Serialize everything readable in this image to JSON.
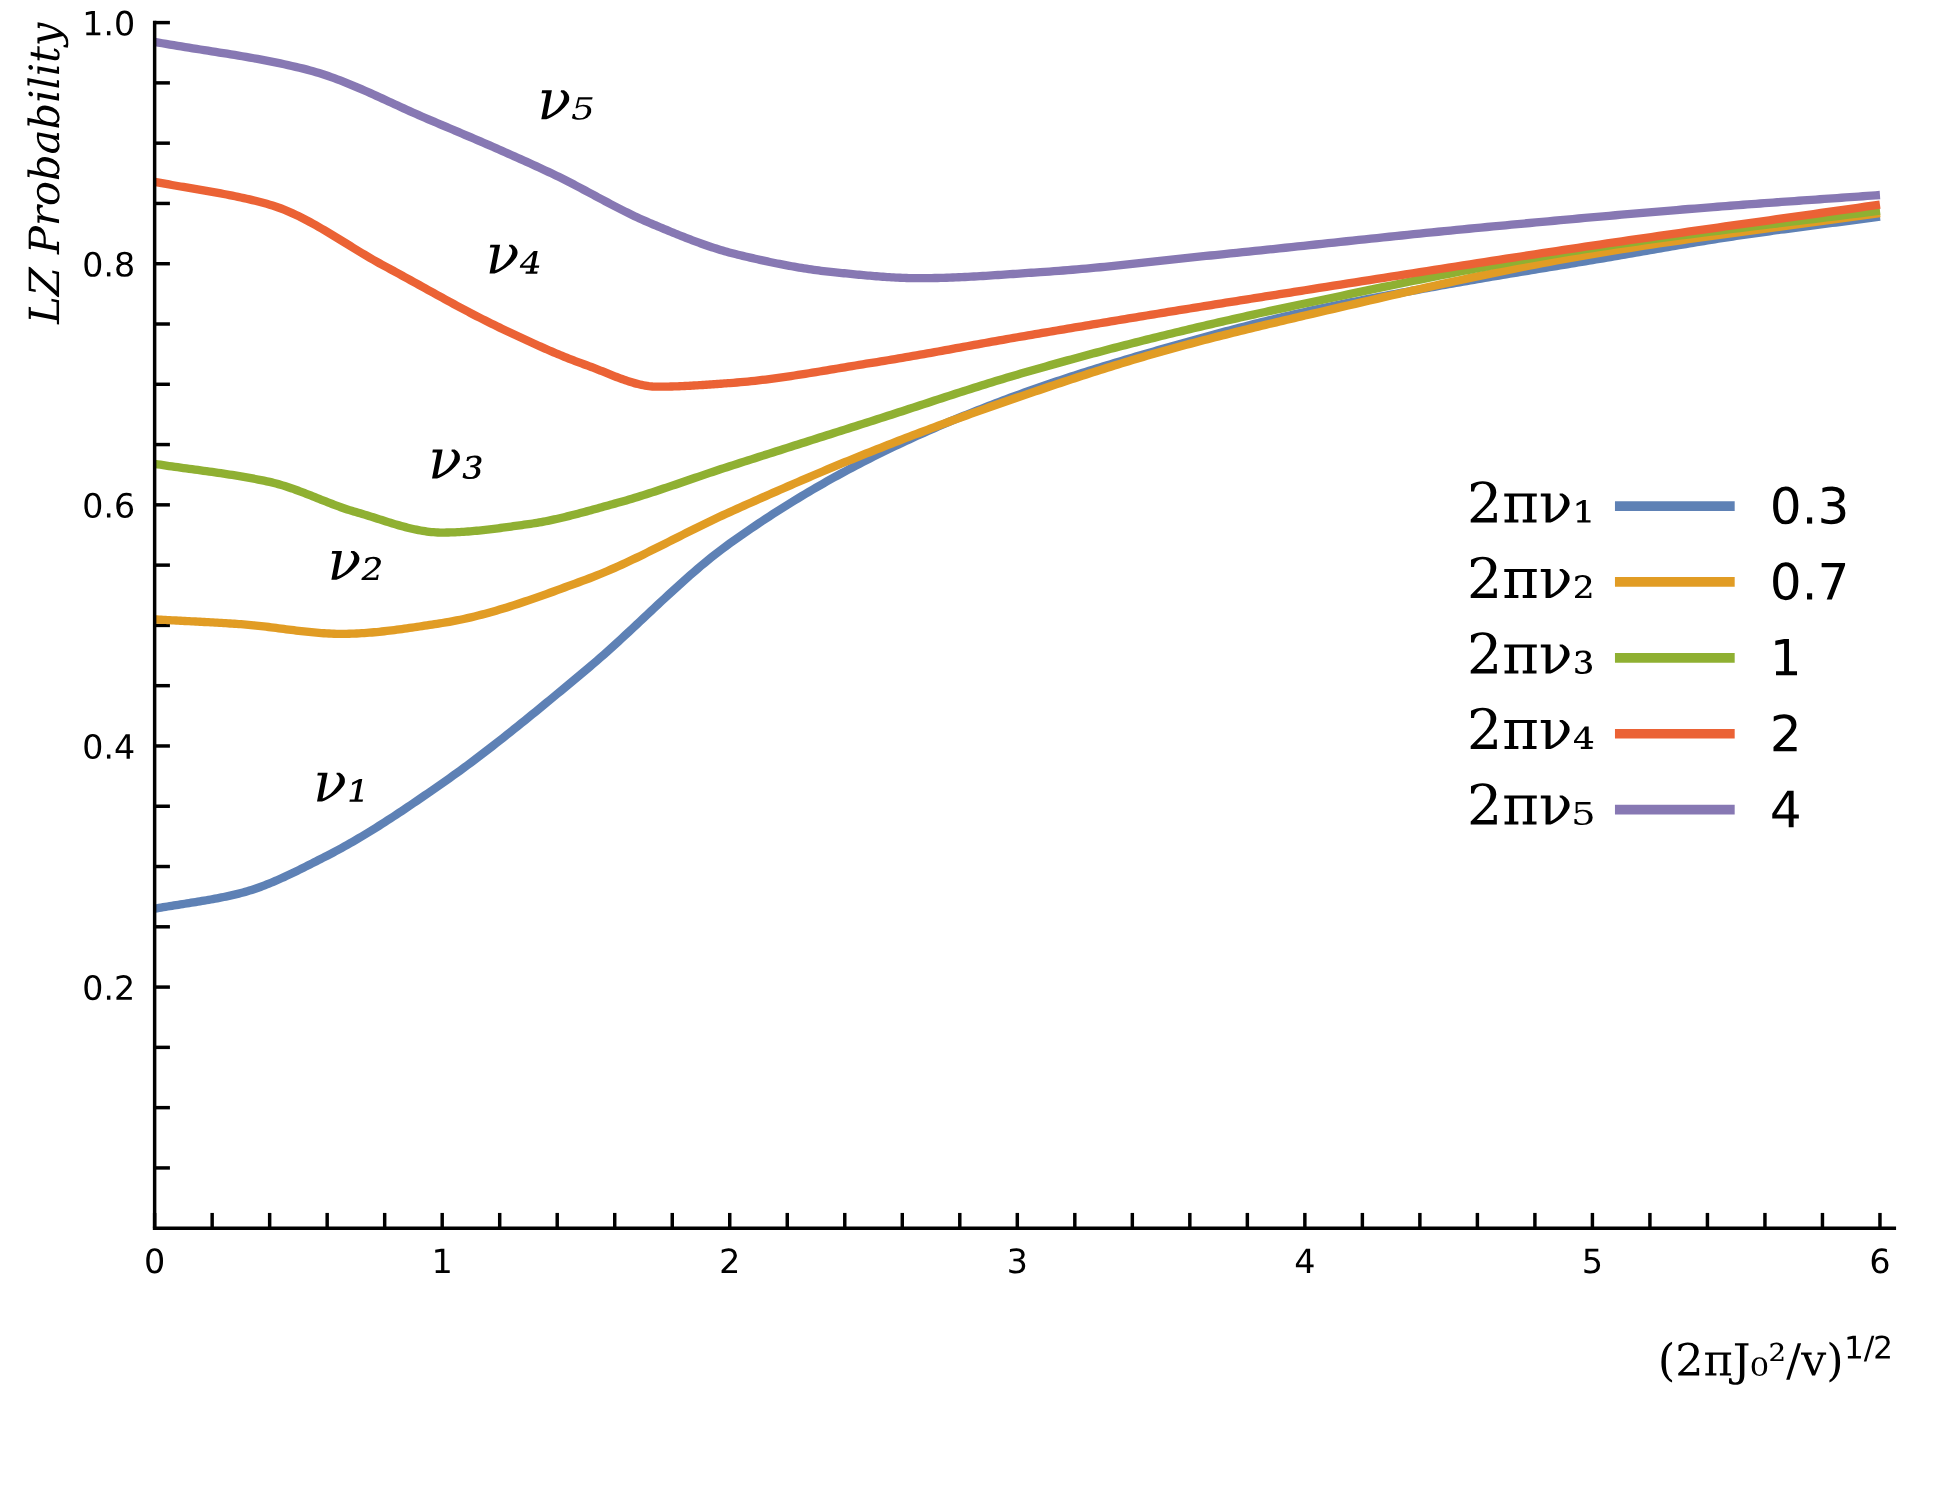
{
  "chart_data": {
    "type": "line",
    "ylabel": "LZ Probability",
    "xlabel": "(2πJ₀²/v)$^{1/2}$",
    "xlim": [
      0,
      6.05
    ],
    "ylim": [
      0,
      1.0
    ],
    "xticks": [
      0,
      {
        "value": 0.2,
        "label": null
      },
      {
        "value": 0.4,
        "label": null
      },
      {
        "value": 0.6,
        "label": null
      },
      {
        "value": 0.8,
        "label": null
      },
      1,
      {
        "value": 1.2,
        "label": null
      },
      {
        "value": 1.4,
        "label": null
      },
      {
        "value": 1.6,
        "label": null
      },
      {
        "value": 1.8,
        "label": null
      },
      2,
      {
        "value": 2.2,
        "label": null
      },
      {
        "value": 2.4,
        "label": null
      },
      {
        "value": 2.6,
        "label": null
      },
      {
        "value": 2.8,
        "label": null
      },
      3,
      {
        "value": 3.2,
        "label": null
      },
      {
        "value": 3.4,
        "label": null
      },
      {
        "value": 3.6,
        "label": null
      },
      {
        "value": 3.8,
        "label": null
      },
      4,
      {
        "value": 4.2,
        "label": null
      },
      {
        "value": 4.4,
        "label": null
      },
      {
        "value": 4.6,
        "label": null
      },
      {
        "value": 4.8,
        "label": null
      },
      5,
      {
        "value": 5.2,
        "label": null
      },
      {
        "value": 5.4,
        "label": null
      },
      {
        "value": 5.6,
        "label": null
      },
      {
        "value": 5.8,
        "label": null
      },
      6
    ],
    "yticks": [
      {
        "value": 0.05,
        "label": null
      },
      {
        "value": 0.1,
        "label": null
      },
      {
        "value": 0.15,
        "label": null
      },
      0.2,
      {
        "value": 0.25,
        "label": null
      },
      {
        "value": 0.3,
        "label": null
      },
      {
        "value": 0.35,
        "label": null
      },
      0.4,
      {
        "value": 0.45,
        "label": null
      },
      {
        "value": 0.5,
        "label": null
      },
      {
        "value": 0.55,
        "label": null
      },
      0.6,
      {
        "value": 0.65,
        "label": null
      },
      {
        "value": 0.7,
        "label": null
      },
      {
        "value": 0.75,
        "label": null
      },
      0.8,
      {
        "value": 0.85,
        "label": null
      },
      {
        "value": 0.9,
        "label": null
      },
      {
        "value": 0.95,
        "label": null
      },
      {
        "value": 1.0,
        "label": "1.0"
      }
    ],
    "grid": false,
    "legend": "right",
    "marker": "none",
    "line_style": "solid",
    "series": [
      {
        "name": "0.3",
        "color": "#5e81b5",
        "x": [
          0,
          0.3,
          0.6,
          1.0,
          1.5,
          2.0,
          2.5,
          3.0,
          3.5,
          4.0,
          4.5,
          5.0,
          5.5,
          6.0
        ],
        "values": [
          0.265,
          0.278,
          0.309,
          0.369,
          0.463,
          0.568,
          0.64,
          0.691,
          0.729,
          0.76,
          0.783,
          0.803,
          0.823,
          0.839
        ]
      },
      {
        "name": "0.7",
        "color": "#e19c24",
        "x": [
          0,
          0.3,
          0.65,
          1.0,
          1.5,
          2.0,
          2.5,
          3.0,
          3.5,
          4.0,
          5.0,
          6.0
        ],
        "values": [
          0.505,
          0.501,
          0.493,
          0.502,
          0.538,
          0.594,
          0.645,
          0.689,
          0.727,
          0.757,
          0.808,
          0.842
        ]
      },
      {
        "name": "1",
        "color": "#8fb032",
        "x": [
          0,
          0.4,
          0.7,
          1.0,
          1.3,
          1.6,
          2.0,
          2.5,
          3.0,
          3.5,
          4.0,
          5.0,
          6.0
        ],
        "values": [
          0.634,
          0.619,
          0.594,
          0.577,
          0.584,
          0.601,
          0.632,
          0.67,
          0.708,
          0.74,
          0.767,
          0.813,
          0.844
        ]
      },
      {
        "name": "2",
        "color": "#eb6235",
        "x": [
          0,
          0.4,
          0.8,
          1.2,
          1.5,
          1.75,
          2.0,
          2.5,
          3.0,
          3.5,
          4.0,
          5.0,
          6.0
        ],
        "values": [
          0.868,
          0.849,
          0.798,
          0.747,
          0.716,
          0.698,
          0.701,
          0.718,
          0.739,
          0.759,
          0.778,
          0.815,
          0.849
        ]
      },
      {
        "name": "4",
        "color": "#8778b3",
        "x": [
          0,
          0.53,
          0.95,
          1.38,
          1.72,
          2.02,
          2.36,
          2.66,
          3.08,
          3.72,
          4.57,
          5.42,
          6.0
        ],
        "values": [
          0.984,
          0.961,
          0.92,
          0.875,
          0.834,
          0.808,
          0.793,
          0.788,
          0.793,
          0.808,
          0.829,
          0.847,
          0.857
        ]
      }
    ],
    "annotations": [
      "ν₁",
      "ν₂",
      "ν₃",
      "ν₄",
      "ν₅",
      "2πν₁",
      "2πν₂",
      "2πν₃",
      "2πν₄",
      "2πν₅"
    ]
  }
}
